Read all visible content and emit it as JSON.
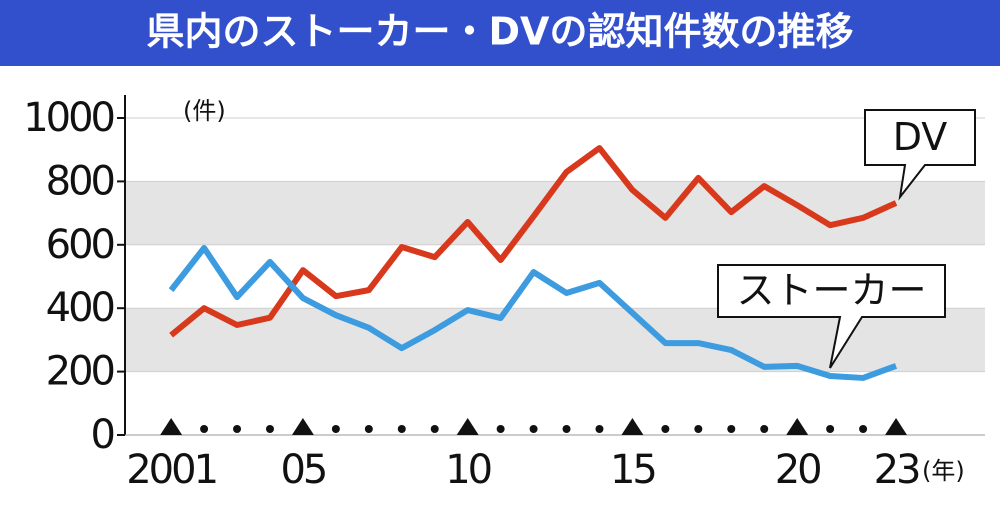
{
  "chart_data": {
    "type": "line",
    "title": "県内のストーカー・DVの認知件数の推移",
    "y_unit": "(件)",
    "x_unit": "(年)",
    "x": [
      2001,
      2002,
      2003,
      2004,
      2005,
      2006,
      2007,
      2008,
      2009,
      2010,
      2011,
      2012,
      2013,
      2014,
      2015,
      2016,
      2017,
      2018,
      2019,
      2020,
      2021,
      2022,
      2023
    ],
    "series": [
      {
        "name": "DV",
        "color": "#d8391c",
        "values": [
          315,
          400,
          347,
          370,
          520,
          438,
          457,
          593,
          561,
          672,
          552,
          690,
          830,
          905,
          773,
          685,
          811,
          703,
          785,
          725,
          662,
          685,
          732
        ]
      },
      {
        "name": "ストーカー",
        "color": "#3d9be0",
        "values": [
          457,
          590,
          435,
          546,
          432,
          378,
          338,
          274,
          331,
          394,
          369,
          514,
          448,
          480,
          385,
          290,
          290,
          268,
          215,
          218,
          186,
          180,
          218
        ]
      }
    ],
    "xlim": [
      1999.6,
      2025.7
    ],
    "xticks": [
      {
        "value": 2001,
        "label": "2001"
      },
      {
        "value": 2005,
        "label": "05"
      },
      {
        "value": 2010,
        "label": "10"
      },
      {
        "value": 2015,
        "label": "15"
      },
      {
        "value": 2020,
        "label": "20"
      },
      {
        "value": 2023,
        "label": "23"
      }
    ],
    "ylim": [
      0,
      1000
    ],
    "yticks": [
      0,
      200,
      400,
      600,
      800,
      1000
    ],
    "grid": true
  }
}
